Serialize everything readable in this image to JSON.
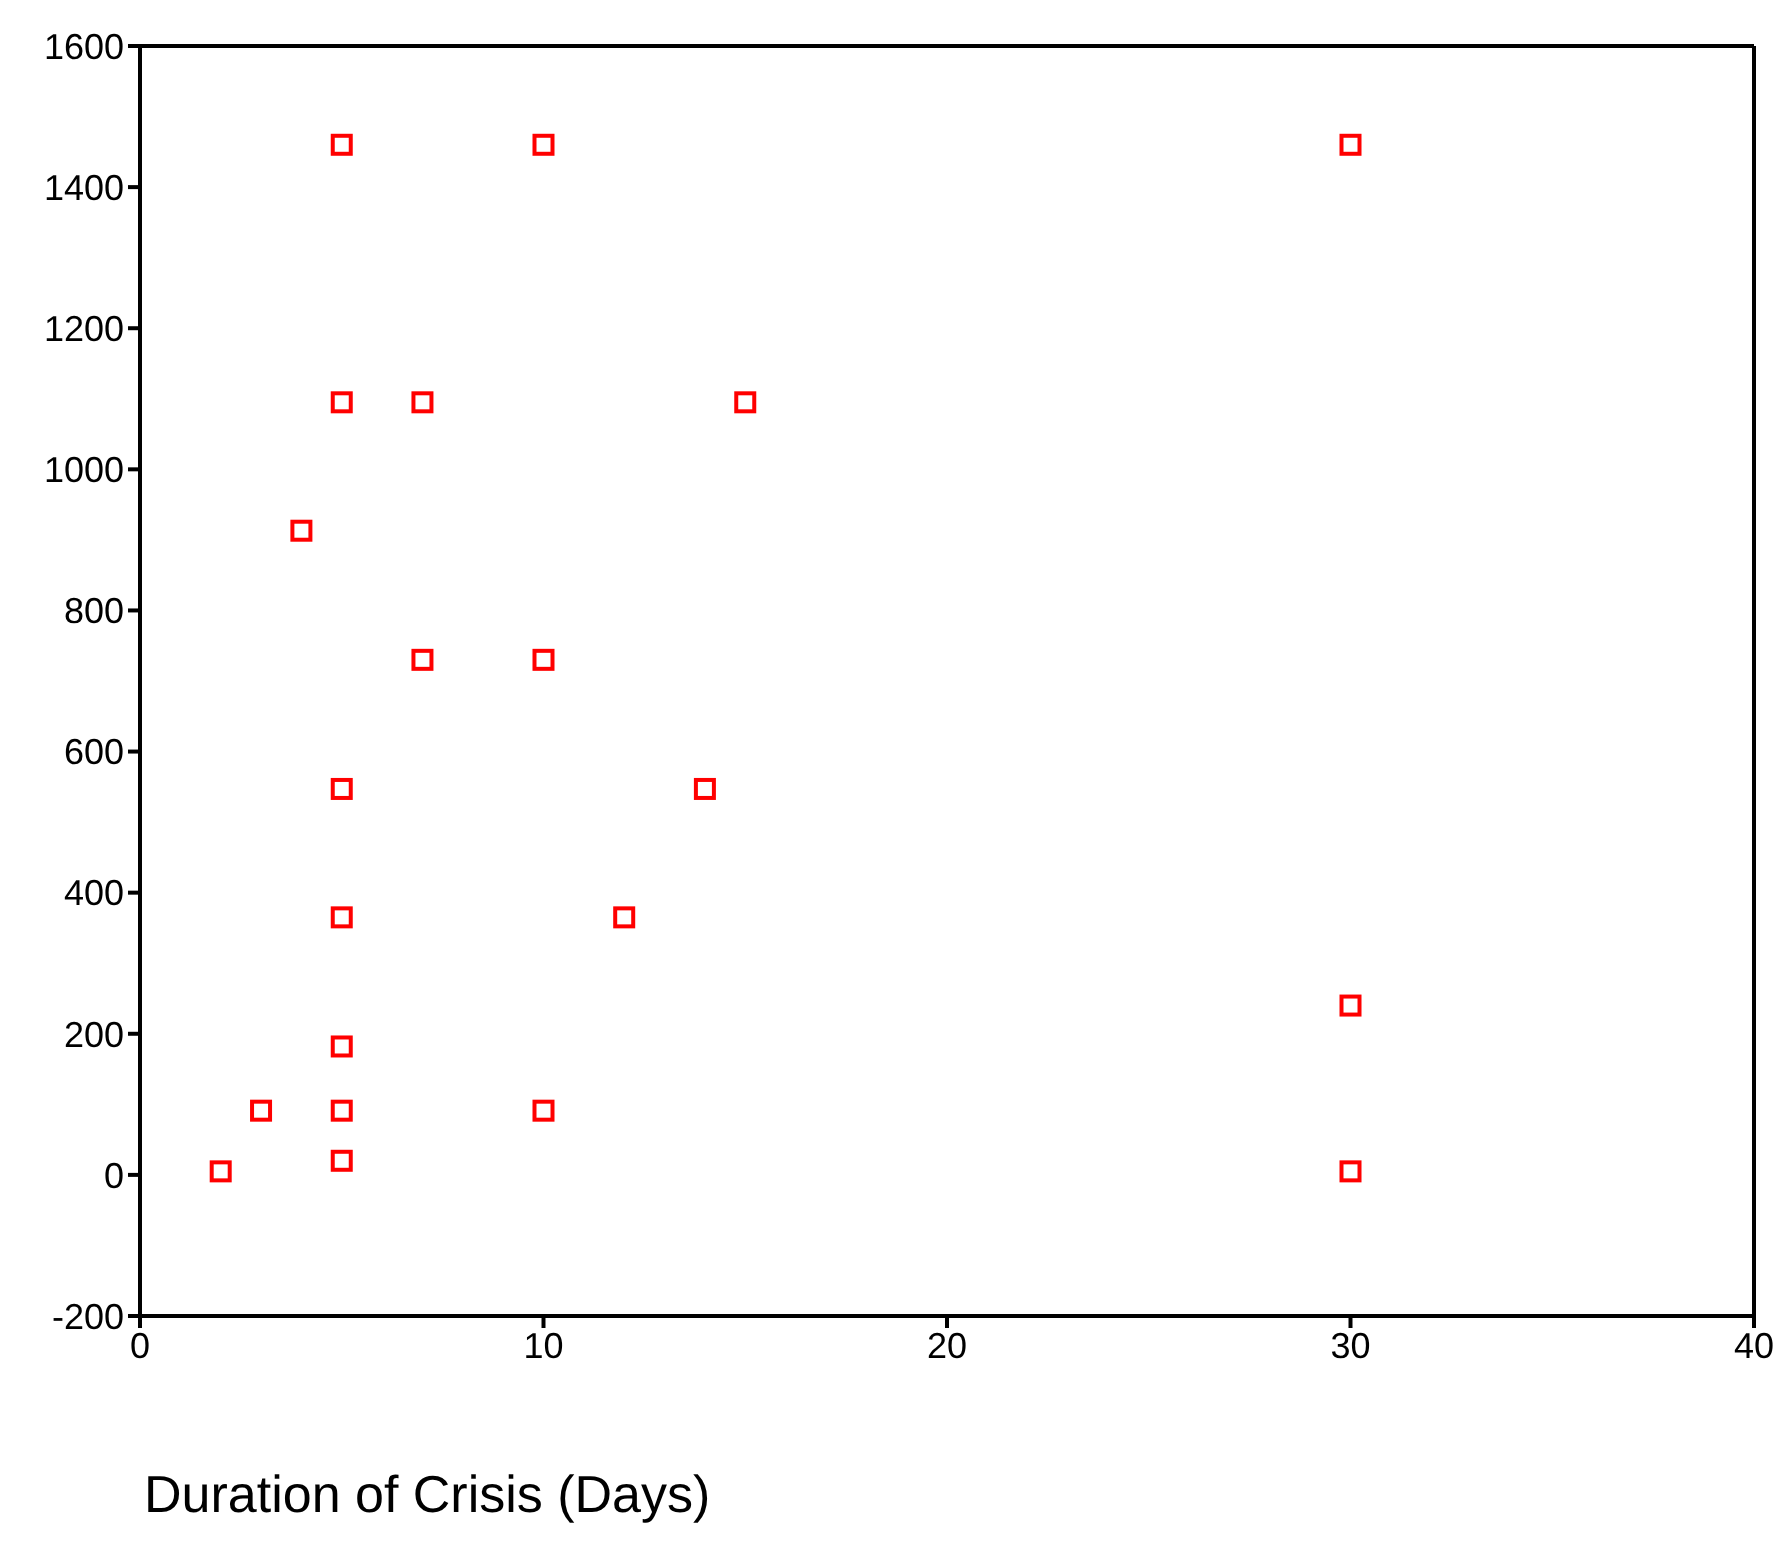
{
  "chart_data": {
    "type": "scatter",
    "xlabel": "Duration of Crisis (Days)",
    "marker": "square",
    "legend": false,
    "x": [
      2,
      3,
      4,
      5,
      5,
      5,
      5,
      5,
      5,
      5,
      7,
      7,
      10,
      10,
      10,
      12,
      14,
      15,
      30,
      30,
      30
    ],
    "series": [
      {
        "color": "#ff0000",
        "values": [
          5,
          91,
          913,
          1460,
          1095,
          547,
          365,
          182,
          91,
          20,
          1095,
          730,
          1460,
          730,
          91,
          365,
          547,
          1095,
          1460,
          240,
          5
        ]
      }
    ],
    "xlim": [
      0,
      40
    ],
    "xticks": [
      0,
      10,
      20,
      30,
      40
    ],
    "ylim": [
      -200,
      1600
    ],
    "yticks": [
      -200,
      0,
      200,
      400,
      600,
      800,
      1000,
      1200,
      1400,
      1600
    ]
  }
}
